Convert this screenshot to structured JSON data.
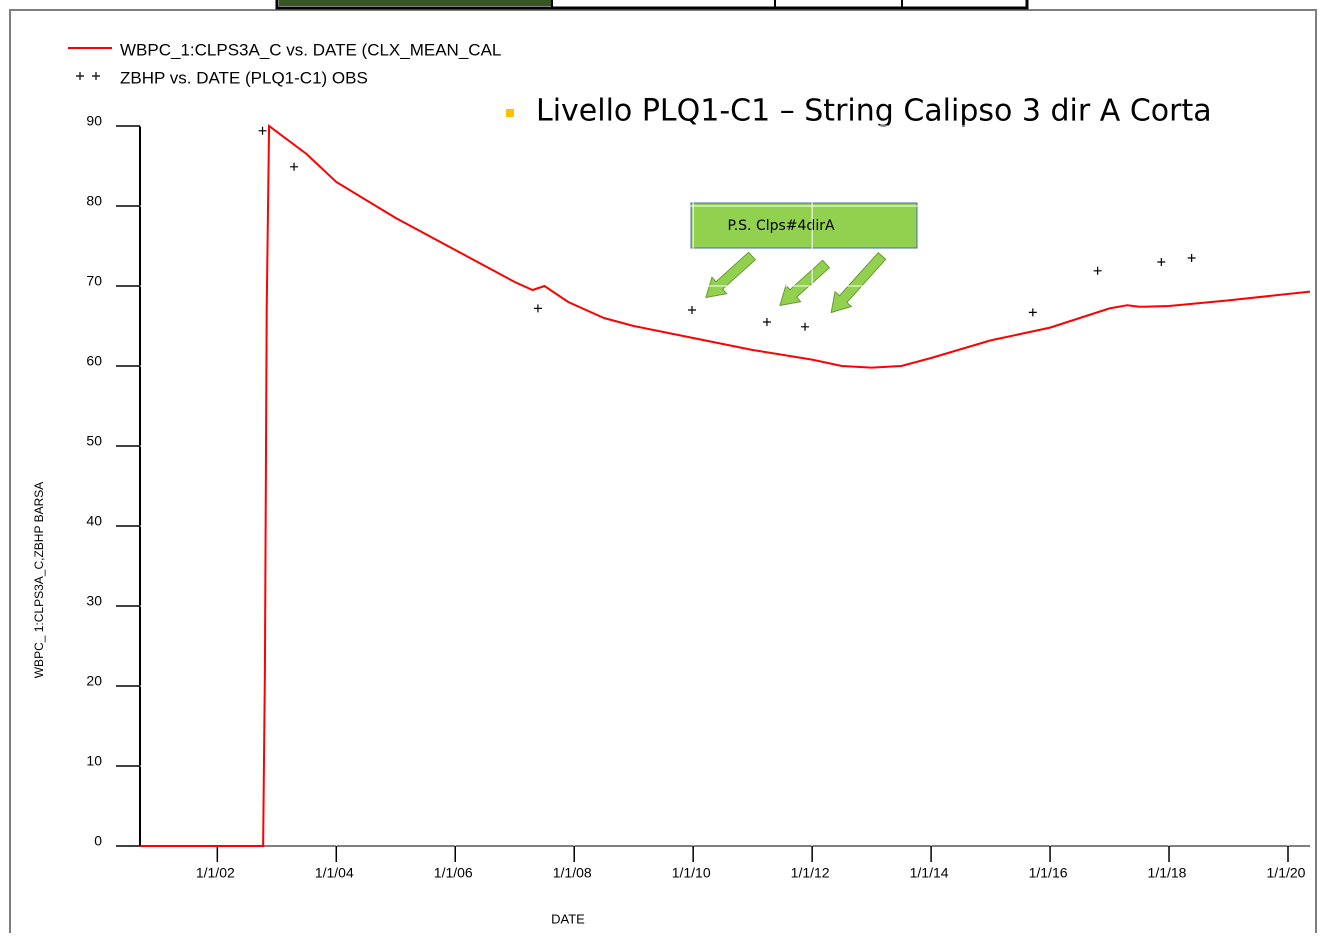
{
  "chart_data": {
    "type": "line",
    "annotation": "Livello PLQ1-C1 – String Calipso 3 dir A Corta",
    "callout": "P.S. Clps#4dirA",
    "x_label": "DATE",
    "y_label": "WBPC_ 1:CLPS3A_C,ZBHP  BARSA",
    "xlim": [
      2000.7,
      2020.37
    ],
    "ylim": [
      0,
      90
    ],
    "xticks": [
      {
        "value": 2002,
        "label": "1/1/02"
      },
      {
        "value": 2004,
        "label": "1/1/04"
      },
      {
        "value": 2006,
        "label": "1/1/06"
      },
      {
        "value": 2008,
        "label": "1/1/08"
      },
      {
        "value": 2010,
        "label": "1/1/10"
      },
      {
        "value": 2012,
        "label": "1/1/12"
      },
      {
        "value": 2014,
        "label": "1/1/14"
      },
      {
        "value": 2016,
        "label": "1/1/16"
      },
      {
        "value": 2018,
        "label": "1/1/18"
      },
      {
        "value": 2020,
        "label": "1/1/20"
      }
    ],
    "yticks": [
      0,
      10,
      20,
      30,
      40,
      50,
      60,
      70,
      80,
      90
    ],
    "grid": true,
    "series": [
      {
        "name": "WBPC_1:CLPS3A_C  vs.  DATE (CLX_MEAN_CAL",
        "color": "#ff0000",
        "style": "line",
        "x": [
          2000.7,
          2002.77,
          2002.8,
          2002.83,
          2002.87,
          2003.5,
          2004,
          2005,
          2006,
          2007,
          2007.3,
          2007.5,
          2007.9,
          2008.5,
          2009,
          2010,
          2011,
          2012,
          2012.5,
          2013,
          2013.5,
          2014,
          2015,
          2016,
          2016.5,
          2017,
          2017.3,
          2017.5,
          2018,
          2019,
          2020.37
        ],
        "values": [
          0,
          0,
          22,
          67,
          90,
          86.5,
          83,
          78.5,
          74.5,
          70.5,
          69.5,
          70,
          68,
          66,
          65,
          63.5,
          62,
          60.8,
          60,
          59.8,
          60,
          61,
          63.2,
          64.8,
          66,
          67.2,
          67.6,
          67.4,
          67.5,
          68.2,
          69.3
        ]
      },
      {
        "name": "ZBHP  vs.  DATE (PLQ1-C1) OBS",
        "color": "#000000",
        "style": "markers",
        "x": [
          2002.76,
          2003.29,
          2007.39,
          2009.98,
          2011.24,
          2011.88,
          2015.71,
          2016.8,
          2017.87,
          2018.38
        ],
        "values": [
          89.4,
          84.9,
          67.2,
          67,
          65.5,
          64.9,
          66.7,
          71.9,
          73,
          73.5
        ]
      }
    ]
  }
}
